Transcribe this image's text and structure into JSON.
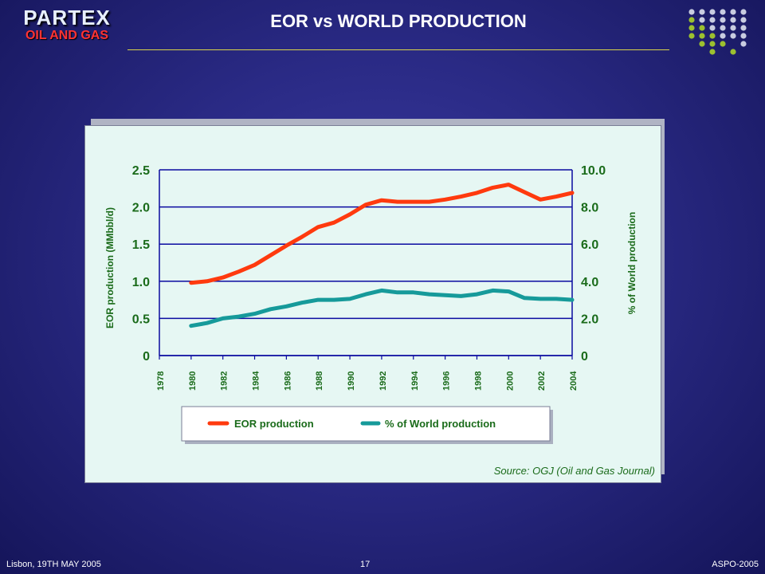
{
  "logo": {
    "name": "PARTEX",
    "sub": "OIL AND GAS"
  },
  "slide": {
    "title": "EOR vs WORLD PRODUCTION"
  },
  "source": "Source: OGJ (Oil and Gas Journal)",
  "footer": {
    "left": "Lisbon, 19TH MAY 2005",
    "center": "17",
    "right": "ASPO-2005"
  },
  "colors": {
    "eor": "#ff3a0e",
    "pct": "#169a9a",
    "text_green": "#1a6b1a",
    "axis": "#0a0aa0"
  },
  "chart_data": {
    "type": "line",
    "x_ticks": [
      "1978",
      "1980",
      "1982",
      "1984",
      "1986",
      "1988",
      "1990",
      "1992",
      "1994",
      "1996",
      "1998",
      "2000",
      "2002",
      "2004"
    ],
    "xlim": [
      1978,
      2004
    ],
    "y_left": {
      "label": "EOR production (MMbbl/d)",
      "ticks": [
        "0",
        "0.5",
        "1.0",
        "1.5",
        "2.0",
        "2.5"
      ],
      "range": [
        0,
        2.5
      ]
    },
    "y_right": {
      "label": "% of World production",
      "ticks": [
        "0",
        "2.0",
        "4.0",
        "6.0",
        "8.0",
        "10.0"
      ],
      "range": [
        0,
        10
      ]
    },
    "grid": "horizontal",
    "legend_position": "bottom",
    "series": [
      {
        "name": "EOR production",
        "axis": "left",
        "x": [
          1980,
          1981,
          1982,
          1983,
          1984,
          1985,
          1986,
          1987,
          1988,
          1989,
          1990,
          1991,
          1992,
          1993,
          1994,
          1995,
          1996,
          1997,
          1998,
          1999,
          2000,
          2001,
          2002,
          2003,
          2004
        ],
        "y": [
          0.98,
          1.0,
          1.05,
          1.13,
          1.22,
          1.35,
          1.48,
          1.6,
          1.73,
          1.79,
          1.9,
          2.03,
          2.09,
          2.07,
          2.07,
          2.07,
          2.1,
          2.14,
          2.19,
          2.26,
          2.3,
          2.2,
          2.1,
          2.14,
          2.19
        ]
      },
      {
        "name": "% of World production",
        "axis": "right",
        "x": [
          1980,
          1981,
          1982,
          1983,
          1984,
          1985,
          1986,
          1987,
          1988,
          1989,
          1990,
          1991,
          1992,
          1993,
          1994,
          1995,
          1996,
          1997,
          1998,
          1999,
          2000,
          2001,
          2002,
          2003,
          2004
        ],
        "y": [
          1.6,
          1.75,
          2.0,
          2.1,
          2.25,
          2.5,
          2.65,
          2.85,
          3.0,
          3.0,
          3.05,
          3.3,
          3.5,
          3.4,
          3.4,
          3.3,
          3.25,
          3.2,
          3.3,
          3.5,
          3.45,
          3.1,
          3.05,
          3.05,
          3.0
        ]
      }
    ]
  }
}
